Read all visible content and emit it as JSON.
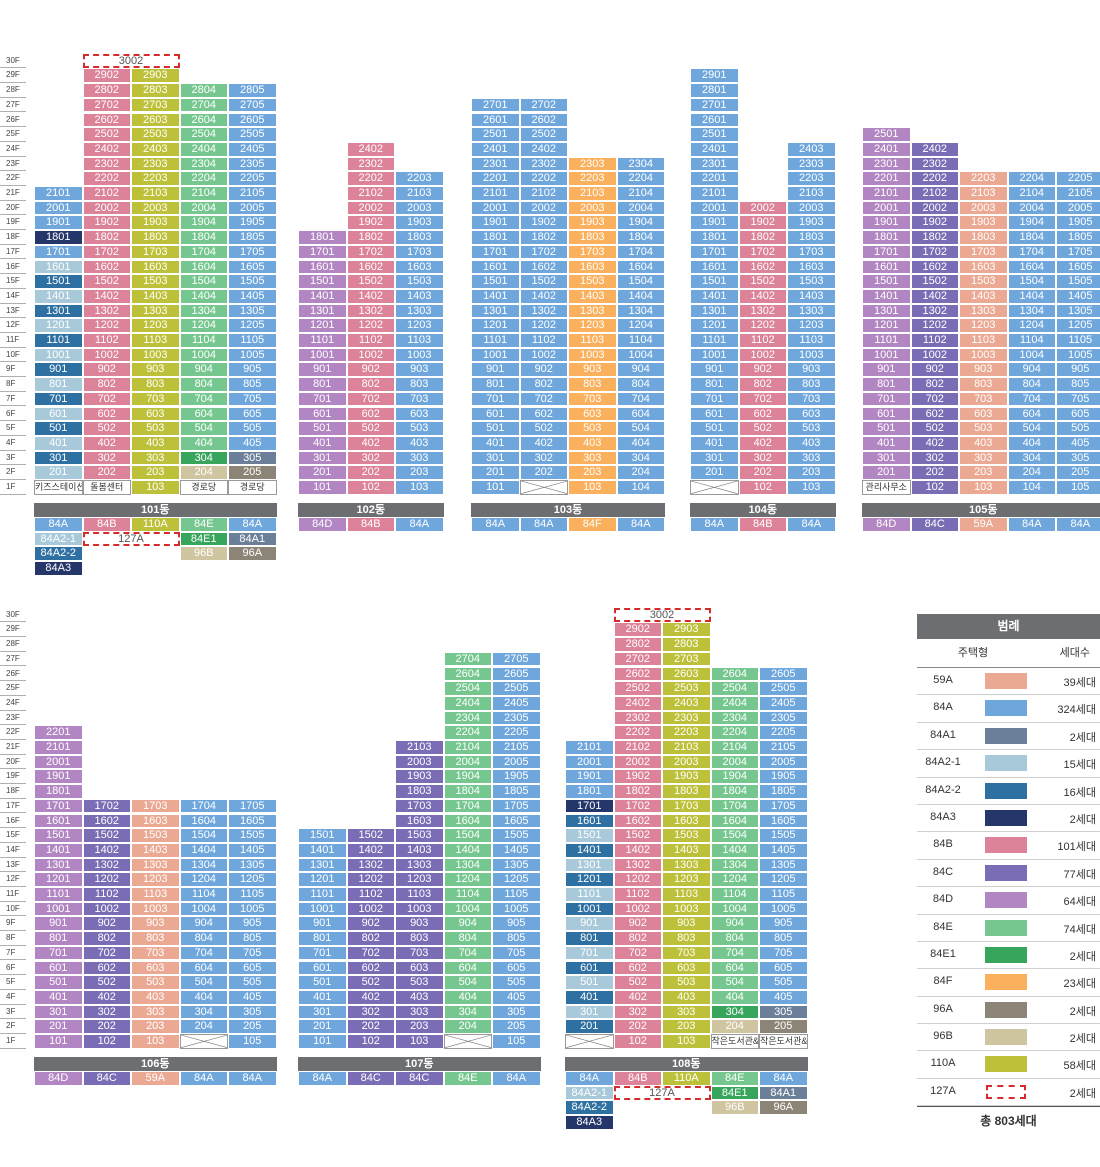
{
  "colors": {
    "59A": "#eba993",
    "84A": "#6fa7dd",
    "84A1": "#6b7f99",
    "84A2-1": "#a8c9da",
    "84A2-2": "#2e70a2",
    "84A3": "#25366a",
    "84B": "#dc8299",
    "84C": "#7a6db5",
    "84D": "#b286c2",
    "84E": "#76c78f",
    "84E1": "#38a55c",
    "84F": "#fab05c",
    "96A": "#8c8476",
    "96B": "#cfc5a0",
    "110A": "#bdc039",
    "127A": "#ffffff"
  },
  "floors": [
    "30F",
    "29F",
    "28F",
    "27F",
    "26F",
    "25F",
    "24F",
    "23F",
    "22F",
    "21F",
    "20F",
    "19F",
    "18F",
    "17F",
    "16F",
    "15F",
    "14F",
    "13F",
    "12F",
    "11F",
    "10F",
    "9F",
    "8F",
    "7F",
    "6F",
    "5F",
    "4F",
    "3F",
    "2F",
    "1F"
  ],
  "buildings": [
    {
      "name": "101동",
      "floor_origin": "top",
      "columns": [
        {
          "unit": "01",
          "type": "84A",
          "maxFloor": 21,
          "overrides": {
            "18": "84A3",
            "16": "84A2-1",
            "15": "84A2-2",
            "14": "84A2-1",
            "13": "84A2-2",
            "12": "84A2-1",
            "11": "84A2-2",
            "10": "84A2-1",
            "9": "84A2-2",
            "8": "84A2-1",
            "7": "84A2-2",
            "6": "84A2-1",
            "5": "84A2-2",
            "4": "84A2-1",
            "3": "84A2-2",
            "2": "84A2-1"
          },
          "ground": "키즈스테이션"
        },
        {
          "unit": "02",
          "type": "84B",
          "maxFloor": 29,
          "ground": "돌봄센터"
        },
        {
          "unit": "03",
          "type": "110A",
          "maxFloor": 29,
          "ground": "103"
        },
        {
          "unit": "04",
          "type": "84E",
          "maxFloor": 28,
          "overrides": {
            "3": "84E1",
            "2": "96B"
          },
          "ground": "경로당"
        },
        {
          "unit": "05",
          "type": "84A",
          "maxFloor": 28,
          "overrides": {
            "3": "84A1",
            "2": "96A"
          },
          "ground": "경로당"
        }
      ],
      "penthouse": {
        "label": "3002",
        "floor": 30
      },
      "type_table": [
        [
          "84A",
          "84B",
          "110A",
          "84E",
          "84A"
        ],
        [
          "84A2-1",
          "127A",
          "127A",
          "84E1",
          "84A1"
        ],
        [
          "84A2-2",
          "",
          "",
          "96B",
          "96A"
        ],
        [
          "84A3",
          "",
          "",
          "",
          ""
        ]
      ]
    },
    {
      "name": "102동",
      "columns": [
        {
          "unit": "01",
          "type": "84D",
          "maxFloor": 18
        },
        {
          "unit": "02",
          "type": "84B",
          "maxFloor": 24
        },
        {
          "unit": "03",
          "type": "84A",
          "maxFloor": 22
        }
      ],
      "type_table": [
        [
          "84D",
          "84B",
          "84A"
        ]
      ]
    },
    {
      "name": "103동",
      "columns": [
        {
          "unit": "01",
          "type": "84A",
          "maxFloor": 27
        },
        {
          "unit": "02",
          "type": "84A",
          "maxFloor": 27,
          "blank_ground": true
        },
        {
          "unit": "03",
          "type": "84F",
          "maxFloor": 23
        },
        {
          "unit": "04",
          "type": "84A",
          "maxFloor": 23
        }
      ],
      "type_table": [
        [
          "84A",
          "84A",
          "84F",
          "84A"
        ]
      ]
    },
    {
      "name": "104동",
      "columns": [
        {
          "unit": "01",
          "type": "84A",
          "maxFloor": 29,
          "blank_ground": true
        },
        {
          "unit": "02",
          "type": "84B",
          "maxFloor": 20
        },
        {
          "unit": "03",
          "type": "84A",
          "maxFloor": 24
        }
      ],
      "type_table": [
        [
          "84A",
          "84B",
          "84A"
        ]
      ]
    },
    {
      "name": "105동",
      "columns": [
        {
          "unit": "01",
          "type": "84D",
          "maxFloor": 25,
          "ground": "관리사무소"
        },
        {
          "unit": "02",
          "type": "84C",
          "maxFloor": 24
        },
        {
          "unit": "03",
          "type": "59A",
          "maxFloor": 22
        },
        {
          "unit": "04",
          "type": "84A",
          "maxFloor": 22
        },
        {
          "unit": "05",
          "type": "84A",
          "maxFloor": 22
        }
      ],
      "type_table": [
        [
          "84D",
          "84C",
          "59A",
          "84A",
          "84A"
        ]
      ]
    },
    {
      "name": "106동",
      "columns": [
        {
          "unit": "01",
          "type": "84D",
          "maxFloor": 22
        },
        {
          "unit": "02",
          "type": "84C",
          "maxFloor": 17
        },
        {
          "unit": "03",
          "type": "59A",
          "maxFloor": 17
        },
        {
          "unit": "04",
          "type": "84A",
          "maxFloor": 17,
          "ground_x": true
        },
        {
          "unit": "05",
          "type": "84A",
          "maxFloor": 17
        }
      ],
      "type_table": [
        [
          "84D",
          "84C",
          "59A",
          "84A",
          "84A"
        ]
      ]
    },
    {
      "name": "107동",
      "columns": [
        {
          "unit": "01",
          "type": "84A",
          "maxFloor": 15
        },
        {
          "unit": "02",
          "type": "84C",
          "maxFloor": 15
        },
        {
          "unit": "03",
          "type": "84C",
          "maxFloor": 21
        },
        {
          "unit": "04",
          "type": "84E",
          "maxFloor": 27,
          "blank_ground": true
        },
        {
          "unit": "05",
          "type": "84A",
          "maxFloor": 27
        }
      ],
      "type_table": [
        [
          "84A",
          "84C",
          "84C",
          "84E",
          "84A"
        ]
      ]
    },
    {
      "name": "108동",
      "columns": [
        {
          "unit": "01",
          "type": "84A",
          "maxFloor": 21,
          "overrides": {
            "17": "84A3",
            "16": "84A2-2",
            "15": "84A2-1",
            "14": "84A2-2",
            "13": "84A2-1",
            "12": "84A2-2",
            "11": "84A2-1",
            "10": "84A2-2",
            "9": "84A2-1",
            "8": "84A2-2",
            "7": "84A2-1",
            "6": "84A2-2",
            "5": "84A2-1",
            "4": "84A2-2",
            "3": "84A2-1",
            "2": "84A2-2"
          },
          "blank_ground": true
        },
        {
          "unit": "02",
          "type": "84B",
          "maxFloor": 29
        },
        {
          "unit": "03",
          "type": "110A",
          "maxFloor": 29
        },
        {
          "unit": "04",
          "type": "84E",
          "maxFloor": 26,
          "overrides": {
            "3": "84E1",
            "2": "96B"
          },
          "ground": "작은도서관&독서실"
        },
        {
          "unit": "05",
          "type": "84A",
          "maxFloor": 26,
          "overrides": {
            "3": "84A1",
            "2": "96A"
          },
          "ground": "작은도서관&독서실"
        }
      ],
      "penthouse": {
        "label": "3002",
        "floor": 30
      },
      "type_table": [
        [
          "84A",
          "84B",
          "110A",
          "84E",
          "84A"
        ],
        [
          "84A2-1",
          "127A",
          "127A",
          "84E1",
          "84A1"
        ],
        [
          "84A2-2",
          "",
          "",
          "96B",
          "96A"
        ],
        [
          "84A3",
          "",
          "",
          "",
          ""
        ]
      ]
    }
  ],
  "legend": {
    "title": "범례",
    "col_type": "주택형",
    "col_count": "세대수",
    "rows": [
      [
        "59A",
        "39세대"
      ],
      [
        "84A",
        "324세대"
      ],
      [
        "84A1",
        "2세대"
      ],
      [
        "84A2-1",
        "15세대"
      ],
      [
        "84A2-2",
        "16세대"
      ],
      [
        "84A3",
        "2세대"
      ],
      [
        "84B",
        "101세대"
      ],
      [
        "84C",
        "77세대"
      ],
      [
        "84D",
        "64세대"
      ],
      [
        "84E",
        "74세대"
      ],
      [
        "84E1",
        "2세대"
      ],
      [
        "84F",
        "23세대"
      ],
      [
        "96A",
        "2세대"
      ],
      [
        "96B",
        "2세대"
      ],
      [
        "110A",
        "58세대"
      ],
      [
        "127A",
        "2세대"
      ]
    ],
    "total": "총 803세대"
  }
}
